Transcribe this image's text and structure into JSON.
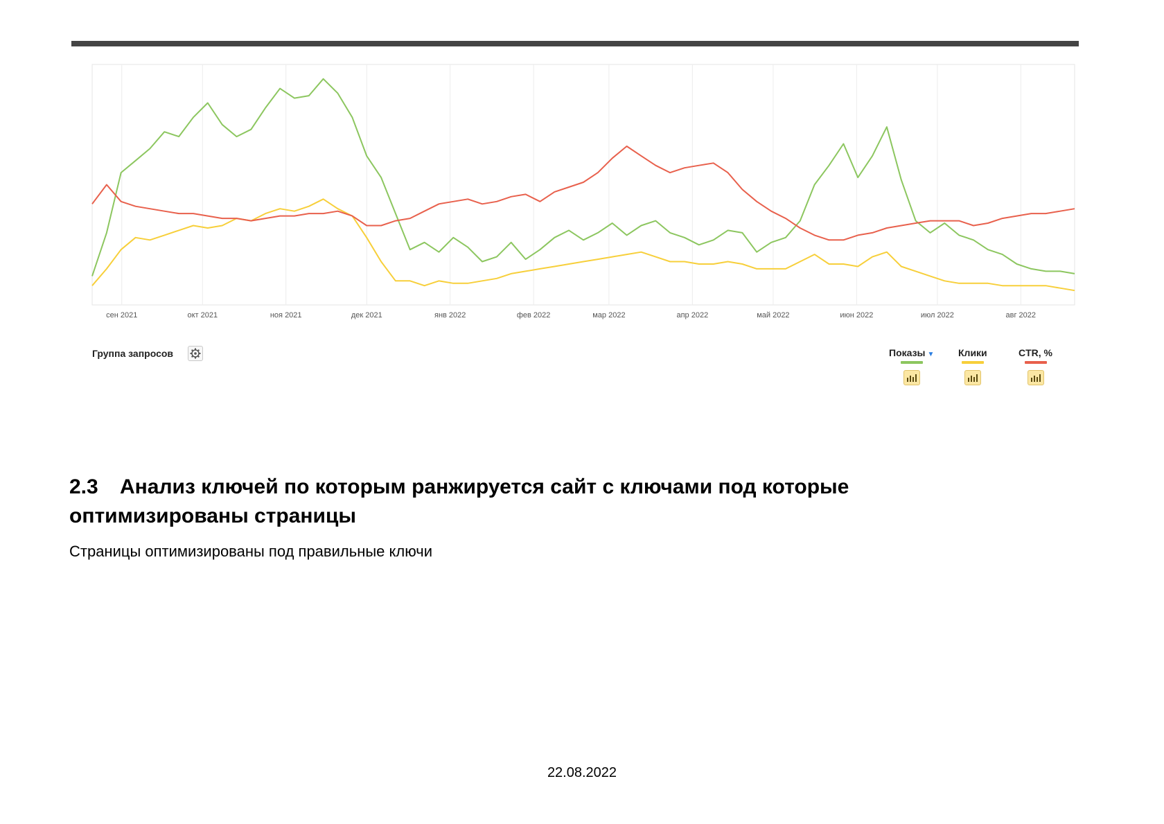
{
  "chart_data": {
    "type": "line",
    "x_labels": [
      "сен 2021",
      "окт 2021",
      "ноя 2021",
      "дек 2021",
      "янв 2022",
      "фев 2022",
      "мар 2022",
      "апр 2022",
      "май 2022",
      "июн 2022",
      "июл 2022",
      "авг 2022"
    ],
    "x_range": [
      "2021-08-21",
      "2022-08-21"
    ],
    "grid": true,
    "legend_placement": "bottom-right",
    "y_range_relative": [
      0,
      100
    ],
    "series": [
      {
        "name": "Показы",
        "color": "#8cc65f",
        "values": [
          12,
          30,
          55,
          60,
          65,
          72,
          70,
          78,
          84,
          75,
          70,
          73,
          82,
          90,
          86,
          87,
          94,
          88,
          78,
          62,
          53,
          38,
          23,
          26,
          22,
          28,
          24,
          18,
          20,
          26,
          19,
          23,
          28,
          31,
          27,
          30,
          34,
          29,
          33,
          35,
          30,
          28,
          25,
          27,
          31,
          30,
          22,
          26,
          28,
          35,
          50,
          58,
          67,
          53,
          62,
          74,
          52,
          35,
          30,
          34,
          29,
          27,
          23,
          21,
          17,
          15,
          14,
          14,
          13
        ]
      },
      {
        "name": "Клики",
        "color": "#f7cf3a",
        "values": [
          8,
          15,
          23,
          28,
          27,
          29,
          31,
          33,
          32,
          33,
          36,
          35,
          38,
          40,
          39,
          41,
          44,
          40,
          37,
          28,
          18,
          10,
          10,
          8,
          10,
          9,
          9,
          10,
          11,
          13,
          14,
          15,
          16,
          17,
          18,
          19,
          20,
          21,
          22,
          20,
          18,
          18,
          17,
          17,
          18,
          17,
          15,
          15,
          15,
          18,
          21,
          17,
          17,
          16,
          20,
          22,
          16,
          14,
          12,
          10,
          9,
          9,
          9,
          8,
          8,
          8,
          8,
          7,
          6
        ]
      },
      {
        "name": "CTR, %",
        "color": "#e8604c",
        "values": [
          42,
          50,
          43,
          41,
          40,
          39,
          38,
          38,
          37,
          36,
          36,
          35,
          36,
          37,
          37,
          38,
          38,
          39,
          37,
          33,
          33,
          35,
          36,
          39,
          42,
          43,
          44,
          42,
          43,
          45,
          46,
          43,
          47,
          49,
          51,
          55,
          61,
          66,
          62,
          58,
          55,
          57,
          58,
          59,
          55,
          48,
          43,
          39,
          36,
          32,
          29,
          27,
          27,
          29,
          30,
          32,
          33,
          34,
          35,
          35,
          35,
          33,
          34,
          36,
          37,
          38,
          38,
          39,
          40
        ]
      }
    ]
  },
  "legend": {
    "group_label": "Группа запросов",
    "gear_icon": "gear-icon",
    "caret_icon": "caret-down-icon",
    "metrics": [
      {
        "label": "Показы",
        "color": "#8cc65f",
        "icon": "bar-chart-icon"
      },
      {
        "label": "Клики",
        "color": "#f7cf3a",
        "icon": "bar-chart-icon"
      },
      {
        "label": "CTR, %",
        "color": "#e8604c",
        "icon": "bar-chart-icon"
      }
    ]
  },
  "section": {
    "number": "2.3",
    "title": "Анализ ключей по которым ранжируется сайт с ключами под которые оптимизированы страницы",
    "text": "Страницы оптимизированы под правильные ключи"
  },
  "footer": {
    "date": "22.08.2022"
  }
}
